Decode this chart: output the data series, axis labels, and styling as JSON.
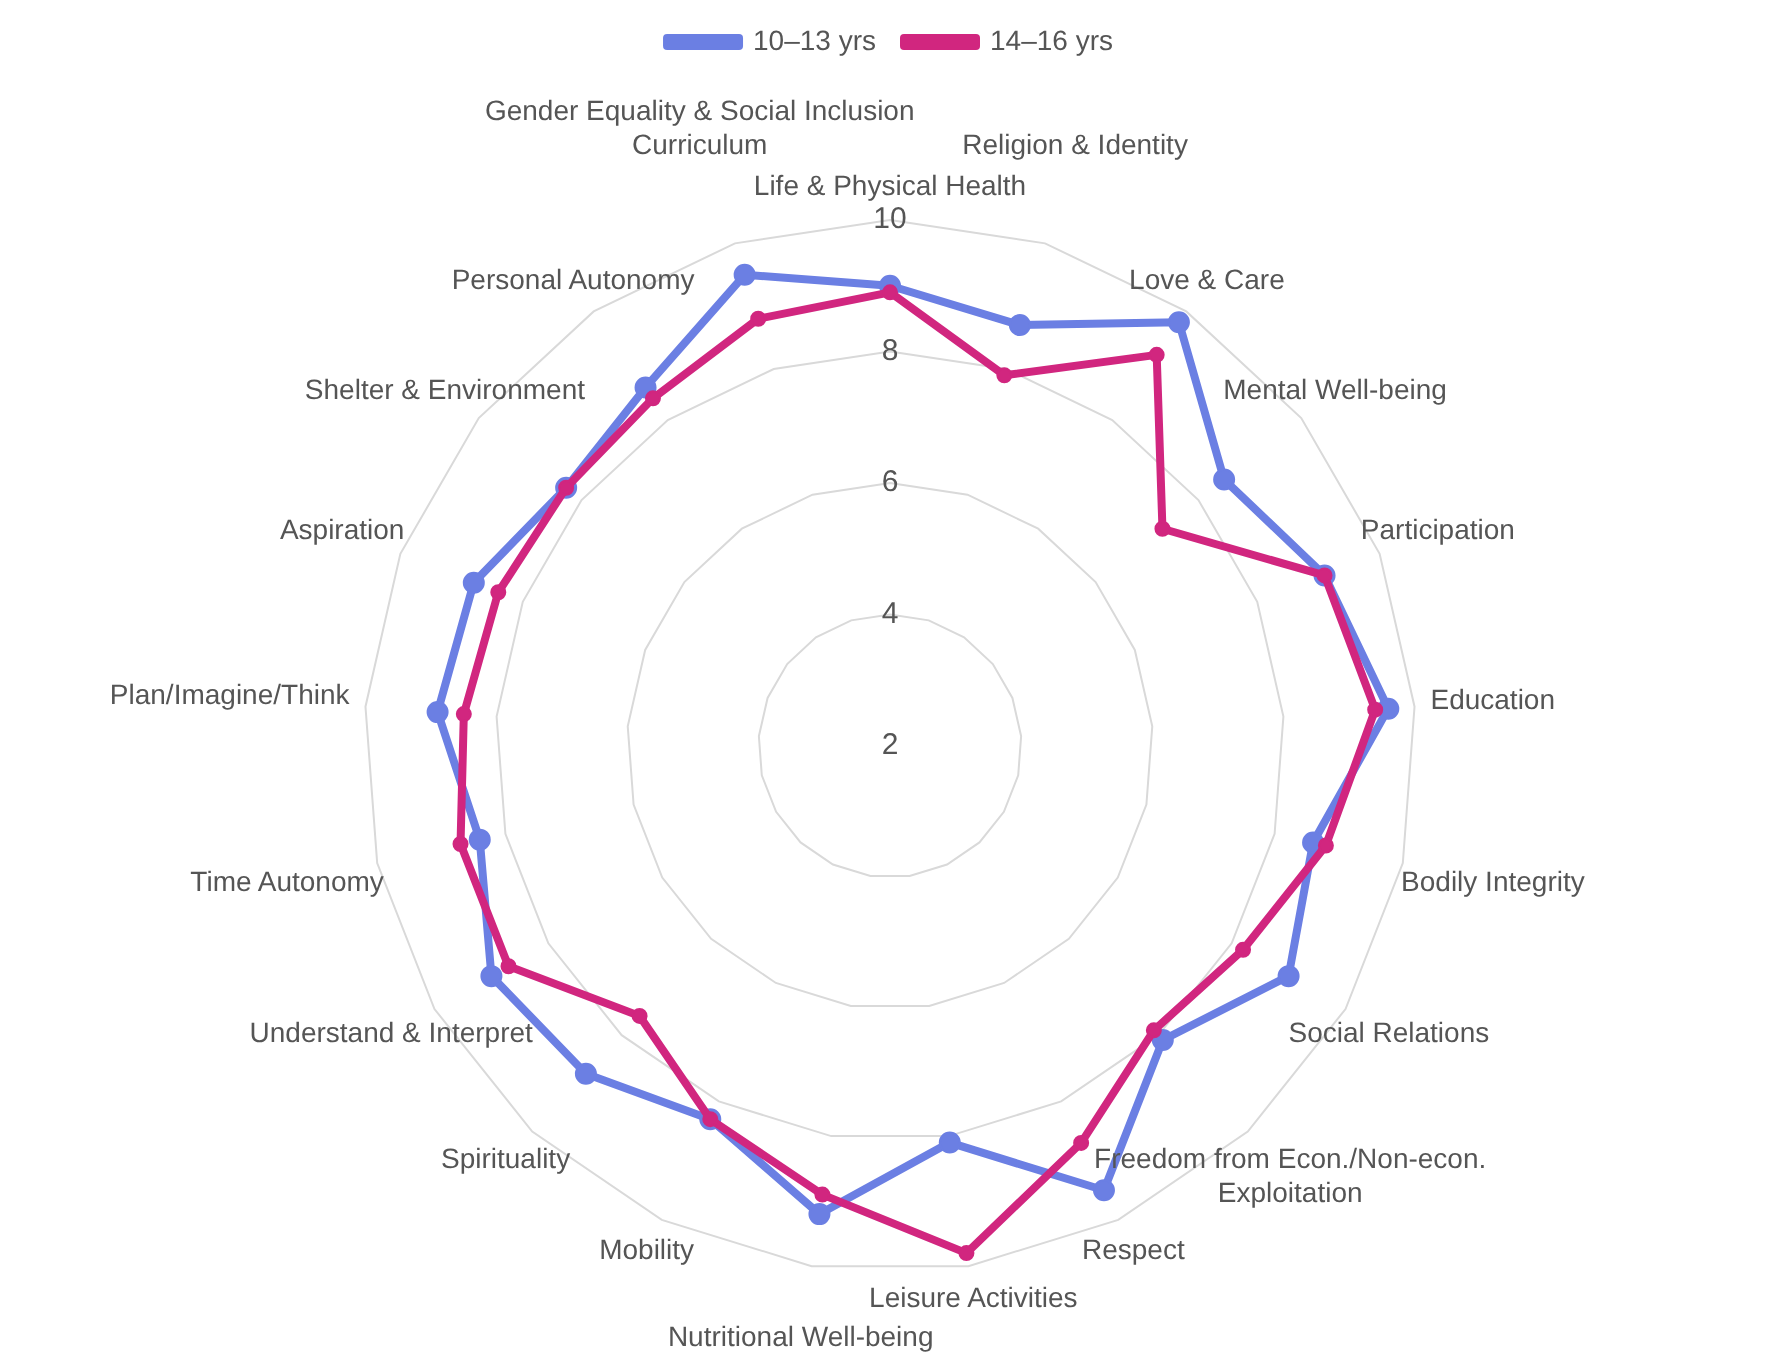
{
  "chart_data": {
    "type": "radar",
    "categories": [
      "Life & Physical Health",
      "Religion & Identity",
      "Love & Care",
      "Mental Well-being",
      "Participation",
      "Education",
      "Bodily Integrity",
      "Social Relations",
      "Freedom from Econ./Non-econ. Exploitation",
      "Respect",
      "Leisure Activities",
      "Nutritional Well-being",
      "Mobility",
      "Spirituality",
      "Understand & Interpret",
      "Time Autonomy",
      "Plan/Imagine/Think",
      "Aspiration",
      "Shelter & Environment",
      "Personal Autonomy",
      "Gender Equality & Social Inclusion Curriculum"
    ],
    "series": [
      {
        "name": "10–13 yrs",
        "color": "#6b7fe3",
        "values": [
          9.0,
          8.7,
          9.8,
          8.5,
          9.1,
          9.6,
          8.6,
          9.0,
          8.1,
          9.5,
          8.1,
          9.2,
          8.3,
          8.8,
          9.0,
          8.4,
          8.9,
          8.8,
          8.3,
          8.6,
          9.5
        ]
      },
      {
        "name": "14–16 yrs",
        "color": "#d1267f",
        "values": [
          8.9,
          7.9,
          9.2,
          7.3,
          9.1,
          9.4,
          8.8,
          8.2,
          7.9,
          8.7,
          9.8,
          8.9,
          8.3,
          7.6,
          8.7,
          8.7,
          8.5,
          8.4,
          8.3,
          8.4,
          8.8
        ]
      }
    ],
    "ylim": [
      2,
      10
    ],
    "yticks": [
      2,
      4,
      6,
      8,
      10
    ],
    "grid": true,
    "legend": "top",
    "marker": "circle",
    "line_style": "solid"
  }
}
